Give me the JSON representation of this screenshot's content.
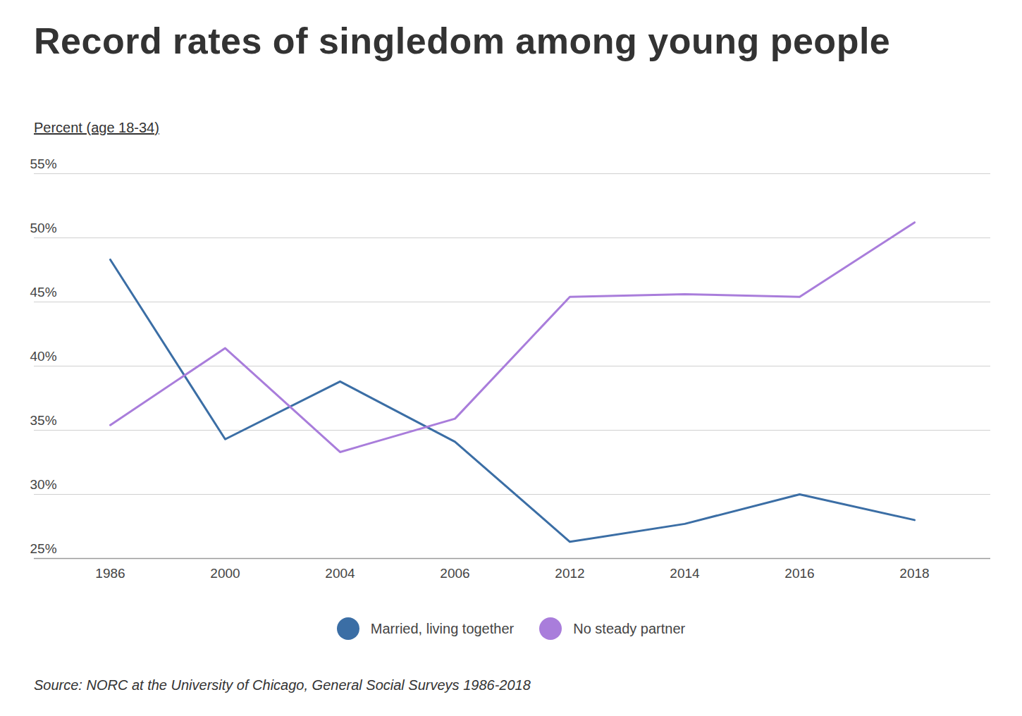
{
  "chart_data": {
    "type": "line",
    "title": "Record rates of singledom among young people",
    "ylabel": "Percent (age 18-34)",
    "caption": "Source: NORC at the University of Chicago, General Social Surveys 1986-2018",
    "categories": [
      "1986",
      "2000",
      "2004",
      "2006",
      "2012",
      "2014",
      "2016",
      "2018"
    ],
    "series": [
      {
        "name": "Married, living together",
        "color": "#3b6ea5",
        "values": [
          48.3,
          34.3,
          38.8,
          34.1,
          26.3,
          27.7,
          30.0,
          28.0
        ]
      },
      {
        "name": "No steady partner",
        "color": "#a97ddb",
        "values": [
          35.4,
          41.4,
          33.3,
          35.9,
          45.4,
          45.6,
          45.4,
          51.2
        ]
      }
    ],
    "ylim": [
      25,
      55
    ],
    "yticks": [
      {
        "value": 25,
        "label": "25%"
      },
      {
        "value": 30,
        "label": "30%"
      },
      {
        "value": 35,
        "label": "35%"
      },
      {
        "value": 40,
        "label": "40%"
      },
      {
        "value": 45,
        "label": "45%"
      },
      {
        "value": 50,
        "label": "50%"
      },
      {
        "value": 55,
        "label": "55%"
      }
    ],
    "grid": true,
    "legend": "bottom"
  }
}
